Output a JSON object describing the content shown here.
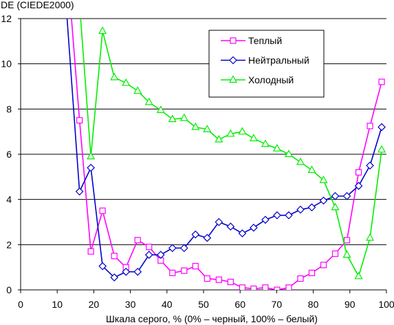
{
  "chart_data": {
    "type": "line",
    "ylabel": "DE (CIEDE2000)",
    "xlabel": "Шкала серого, % (0% – черный, 100% – белый)",
    "xlim": [
      0,
      100
    ],
    "ylim": [
      0,
      12
    ],
    "xticks": [
      0,
      10,
      20,
      30,
      40,
      50,
      60,
      70,
      80,
      90,
      100
    ],
    "yticks": [
      0,
      2,
      4,
      6,
      8,
      10,
      12
    ],
    "grid": "horizontal",
    "legend_position": "top-right",
    "series": [
      {
        "name": "Теплый",
        "color": "#ff00ff",
        "marker": "square",
        "x": [
          13.9,
          16.1,
          19.2,
          22.4,
          25.6,
          28.8,
          32.0,
          35.1,
          38.3,
          41.5,
          44.7,
          47.8,
          51.0,
          54.2,
          57.4,
          60.6,
          63.7,
          66.9,
          70.1,
          73.3,
          76.5,
          79.6,
          82.8,
          86.0,
          89.2,
          92.4,
          95.5,
          98.7
        ],
        "y": [
          12.0,
          7.5,
          1.7,
          3.5,
          1.5,
          1.0,
          2.2,
          1.9,
          1.3,
          0.75,
          0.85,
          1.05,
          0.5,
          0.45,
          0.35,
          0.1,
          0.05,
          0.1,
          0.0,
          0.1,
          0.5,
          0.75,
          1.1,
          1.6,
          2.2,
          5.2,
          7.25,
          9.2
        ]
      },
      {
        "name": "Нейтральный",
        "color": "#0000cc",
        "marker": "diamond",
        "x": [
          12.7,
          16.1,
          19.2,
          22.4,
          25.6,
          28.8,
          32.0,
          35.1,
          38.3,
          41.5,
          44.7,
          47.8,
          51.0,
          54.2,
          57.4,
          60.6,
          63.7,
          66.9,
          70.1,
          73.3,
          76.5,
          79.6,
          82.8,
          86.0,
          89.2,
          92.4,
          95.5,
          98.7
        ],
        "y": [
          12.0,
          4.35,
          5.4,
          1.05,
          0.55,
          0.8,
          0.8,
          1.55,
          1.55,
          1.85,
          1.85,
          2.45,
          2.3,
          3.0,
          2.8,
          2.5,
          2.75,
          3.1,
          3.3,
          3.3,
          3.55,
          3.65,
          3.95,
          4.15,
          4.15,
          4.6,
          5.5,
          7.2
        ]
      },
      {
        "name": "Холодный",
        "color": "#00ee00",
        "marker": "triangle",
        "x": [
          16.4,
          19.2,
          22.4,
          25.6,
          28.8,
          32.0,
          35.1,
          38.3,
          41.5,
          44.7,
          47.8,
          51.0,
          54.2,
          57.4,
          60.6,
          63.7,
          66.9,
          70.1,
          73.3,
          76.5,
          79.6,
          82.8,
          86.0,
          89.2,
          92.4,
          95.5,
          98.7
        ],
        "y": [
          12.0,
          5.9,
          11.45,
          9.4,
          9.15,
          8.8,
          8.3,
          7.95,
          7.55,
          7.6,
          7.2,
          7.1,
          6.65,
          6.9,
          7.0,
          6.7,
          6.45,
          6.25,
          6.0,
          5.65,
          5.3,
          4.85,
          3.65,
          1.55,
          0.6,
          2.3,
          6.2
        ]
      }
    ]
  }
}
